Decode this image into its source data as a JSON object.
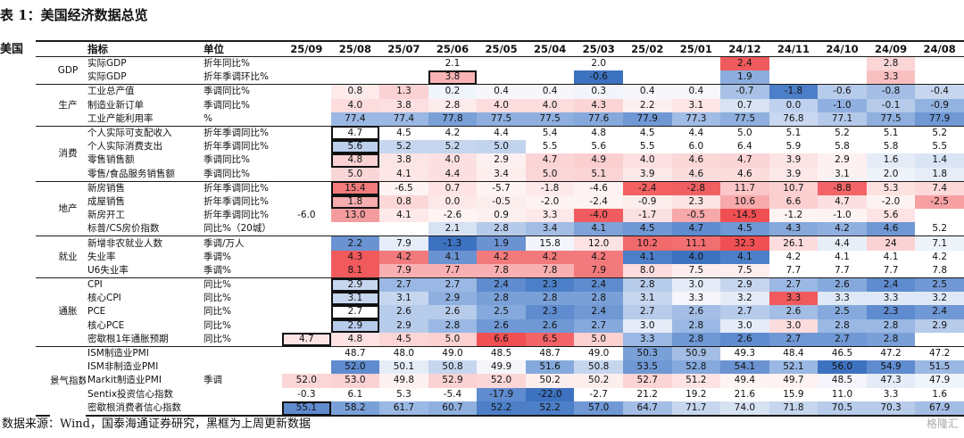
{
  "title": "表 1：美国经济数据总览",
  "country": "美国",
  "header": {
    "indicator": "指标",
    "unit": "单位",
    "months": [
      "25/09",
      "25/08",
      "25/07",
      "25/06",
      "25/05",
      "25/04",
      "25/03",
      "25/02",
      "25/01",
      "24/12",
      "24/11",
      "24/10",
      "24/09",
      "24/08"
    ]
  },
  "groups": [
    {
      "name": "GDP",
      "rows": [
        {
          "ind": "实际GDP",
          "unit": "折年同比%",
          "vals": [
            "",
            "",
            "",
            "2.1",
            "",
            "",
            "2.0",
            "",
            "",
            "2.4",
            "",
            "",
            "2.8",
            ""
          ],
          "bg": [
            "",
            "",
            "",
            "",
            "",
            "",
            "",
            "",
            "",
            "#f05a5c",
            "",
            "",
            "#fbd6d7",
            ""
          ],
          "box": []
        },
        {
          "ind": "实际GDP",
          "unit": "折年季调环比%",
          "vals": [
            "",
            "",
            "",
            "3.8",
            "",
            "",
            "-0.6",
            "",
            "",
            "1.9",
            "",
            "",
            "3.3",
            ""
          ],
          "bg": [
            "",
            "",
            "",
            "#f8b4b6",
            "",
            "",
            "#3d72c0",
            "",
            "",
            "#8cadde",
            "",
            "",
            "#f8bfc1",
            ""
          ],
          "box": [
            3
          ]
        }
      ]
    },
    {
      "name": "生产",
      "rows": [
        {
          "ind": "工业总产值",
          "unit": "季调同比%",
          "vals": [
            "",
            "0.8",
            "1.3",
            "0.2",
            "0.4",
            "0.4",
            "0.3",
            "0.4",
            "0.4",
            "-0.7",
            "-1.8",
            "-0.6",
            "-0.8",
            "-0.4"
          ],
          "bg": [
            "",
            "#fdeaea",
            "#fbd2d3",
            "#f0f4fb",
            "#f7f7fb",
            "#f7f7fb",
            "#f2f5fb",
            "#f7f7fb",
            "#f7f7fb",
            "#a9c1e6",
            "#4c7fc8",
            "#b7cbea",
            "#a3bde4",
            "#c6d6ee"
          ],
          "box": []
        },
        {
          "ind": "制造业新订单",
          "unit": "季调同比%",
          "vals": [
            "",
            "4.0",
            "3.8",
            "2.8",
            "4.0",
            "4.0",
            "4.3",
            "2.2",
            "3.1",
            "0.7",
            "0.0",
            "-1.0",
            "-0.1",
            "-0.9"
          ],
          "bg": [
            "",
            "#fcdcdd",
            "#fcdfe0",
            "#fdeaeb",
            "#fcdcdd",
            "#fcdcdd",
            "#fbd5d6",
            "#fdf0f0",
            "#fde5e5",
            "#d7e2f3",
            "#bfd1ee",
            "#8fb0e0",
            "#b6cbea",
            "#92b2e0"
          ],
          "box": []
        },
        {
          "ind": "工业产能利用率",
          "unit": "%",
          "vals": [
            "",
            "77.4",
            "77.4",
            "77.8",
            "77.5",
            "77.5",
            "77.6",
            "77.9",
            "77.3",
            "77.5",
            "76.8",
            "77.1",
            "77.5",
            "77.9"
          ],
          "bg": [
            "",
            "#9ab8e3",
            "#9ab8e3",
            "#7aa0d8",
            "#8fb0df",
            "#8fb0df",
            "#85a9dc",
            "#6f98d4",
            "#a1bce5",
            "#8fb0df",
            "#c9d8f0",
            "#b4c9ea",
            "#8fb0df",
            "#6f98d4"
          ],
          "box": []
        }
      ]
    },
    {
      "name": "消费",
      "rows": [
        {
          "ind": "个人实际可支配收入",
          "unit": "折年季调同比%",
          "vals": [
            "",
            "4.7",
            "4.5",
            "4.2",
            "4.4",
            "5.4",
            "4.8",
            "4.5",
            "4.4",
            "5.0",
            "5.1",
            "5.2",
            "5.1",
            "5.2"
          ],
          "bg": [
            "",
            "",
            "",
            "",
            "",
            "",
            "",
            "",
            "",
            "",
            "",
            "",
            "",
            ""
          ],
          "box": [
            1
          ]
        },
        {
          "ind": "个人实际消费支出",
          "unit": "折年季调同比%",
          "vals": [
            "",
            "5.6",
            "5.2",
            "5.2",
            "5.0",
            "5.5",
            "5.6",
            "5.5",
            "6.0",
            "6.4",
            "5.9",
            "5.8",
            "5.8",
            "5.5"
          ],
          "bg": [
            "",
            "#bccfec",
            "#c6d6ee",
            "#c6d6ee",
            "#c2d3ed",
            "",
            "",
            "",
            "",
            "",
            "",
            "",
            "",
            ""
          ],
          "box": [
            1
          ]
        },
        {
          "ind": "零售销售额",
          "unit": "季调同比%",
          "vals": [
            "",
            "4.8",
            "3.8",
            "4.0",
            "2.9",
            "4.7",
            "4.9",
            "4.0",
            "4.6",
            "4.7",
            "3.9",
            "2.9",
            "1.6",
            "1.4"
          ],
          "bg": [
            "",
            "#fbd2d3",
            "#fce5e5",
            "#fce0e1",
            "#fdf0f0",
            "#fbd4d5",
            "#fbcfd0",
            "#fce0e1",
            "#fbd7d8",
            "#fbd4d5",
            "#fce3e4",
            "#fdf0f0",
            "#e5ecf7",
            "#d9e4f4"
          ],
          "box": [
            1
          ]
        },
        {
          "ind": "零售/食品服务销售额",
          "unit": "季调同比%",
          "vals": [
            "",
            "5.0",
            "4.1",
            "4.4",
            "3.4",
            "5.0",
            "5.1",
            "3.9",
            "4.6",
            "4.6",
            "3.9",
            "3.1",
            "2.0",
            "1.8"
          ],
          "bg": [
            "",
            "#fbd6d7",
            "#fce6e6",
            "#fcdfe0",
            "#fdeeee",
            "#fbd6d7",
            "#fbd4d5",
            "#fce8e8",
            "#fcdcdd",
            "#fcdcdd",
            "#fce8e8",
            "#fdf2f2",
            "#eef3fa",
            "#e6edf8"
          ],
          "box": []
        }
      ]
    },
    {
      "name": "地产",
      "rows": [
        {
          "ind": "新房销售",
          "unit": "折年季调同比%",
          "vals": [
            "",
            "15.4",
            "-6.5",
            "0.7",
            "-5.7",
            "-1.8",
            "-4.6",
            "-2.4",
            "-2.8",
            "11.7",
            "10.7",
            "-8.8",
            "5.3",
            "7.4"
          ],
          "bg": [
            "",
            "#f27b7d",
            "#fef4f4",
            "#fde3e4",
            "#fef4f4",
            "#fde9e9",
            "#fef2f2",
            "#f36163",
            "#f06063",
            "#fbc6c7",
            "#fccfd0",
            "#f26467",
            "#fde1e1",
            "#fdd9da"
          ],
          "box": [
            1
          ]
        },
        {
          "ind": "成屋销售",
          "unit": "折年季调同比%",
          "vals": [
            "",
            "1.8",
            "0.8",
            "0.0",
            "-0.5",
            "-2.0",
            "-2.4",
            "-0.9",
            "2.3",
            "10.6",
            "6.6",
            "4.7",
            "-2.0",
            "-2.5"
          ],
          "bg": [
            "",
            "#f6adaf",
            "#fbd7d8",
            "#fde8e9",
            "#fdeeee",
            "#fef3f3",
            "#fef3f3",
            "#fdeeee",
            "#fde3e4",
            "#f7a9ab",
            "#fbcfd0",
            "#fce0e1",
            "#fef3f3",
            "#f6a0a2"
          ],
          "box": [
            1
          ]
        },
        {
          "ind": "新房开工",
          "unit": "折年季调同比%",
          "vals": [
            "-6.0",
            "13.0",
            "4.1",
            "-2.6",
            "0.9",
            "3.3",
            "-4.0",
            "-1.7",
            "-0.5",
            "-14.5",
            "-1.2",
            "-1.0",
            "5.6",
            ""
          ],
          "bg": [
            "",
            "#f39c9e",
            "#fde9e9",
            "#fef4f4",
            "#fdf0f0",
            "#fde9e9",
            "#f05c5f",
            "#fbe0e1",
            "#f7a8aa",
            "#f05054",
            "#fef3f3",
            "#fef3f3",
            "#fde3e4",
            ""
          ],
          "box": [],
          "shift": true
        },
        {
          "ind": "标普/CS房价指数",
          "unit": "同比%（20城）",
          "vals": [
            "",
            "",
            "",
            "2.1",
            "2.8",
            "3.4",
            "4.1",
            "4.5",
            "4.7",
            "4.5",
            "4.3",
            "4.2",
            "4.6",
            "5.2"
          ],
          "bg": [
            "",
            "",
            "",
            "#d7e2f3",
            "#b6cbea",
            "#a3bde4",
            "#7fa3d9",
            "#6f98d4",
            "#5f8bcf",
            "#6f98d4",
            "#86a8db",
            "#8fb0df",
            "#6f98d4",
            ""
          ],
          "box": []
        }
      ]
    },
    {
      "name": "就业",
      "rows": [
        {
          "ind": "新增非农就业人数",
          "unit": "季调/万人",
          "vals": [
            "",
            "2.2",
            "7.9",
            "-1.3",
            "1.9",
            "15.8",
            "12.0",
            "10.2",
            "11.1",
            "32.3",
            "26.1",
            "4.4",
            "24",
            "7.1"
          ],
          "bg": [
            "",
            "#6b93d2",
            "#e6edf8",
            "#3d72c0",
            "#6b93d2",
            "#f2f5fb",
            "#fce2e3",
            "#f16a6c",
            "#f26f71",
            "#f05054",
            "#fcdcdd",
            "#e8eef8",
            "#fbd2d3",
            "#eef3fa"
          ],
          "box": []
        },
        {
          "ind": "失业率",
          "unit": "季调%",
          "vals": [
            "",
            "4.3",
            "4.2",
            "4.1",
            "4.2",
            "4.2",
            "4.2",
            "4.1",
            "4.0",
            "4.1",
            "4.2",
            "4.1",
            "4.1",
            "4.2"
          ],
          "bg": [
            "",
            "#f05a5c",
            "#f37a7c",
            "#6b93d2",
            "#f37a7c",
            "#f37a7c",
            "#f37a7c",
            "#4c7fc8",
            "#3d72c0",
            "#4c7fc8",
            "",
            "",
            "",
            ""
          ],
          "box": []
        },
        {
          "ind": "U6失业率",
          "unit": "季调%",
          "vals": [
            "",
            "8.1",
            "7.9",
            "7.7",
            "7.8",
            "7.8",
            "7.9",
            "8.0",
            "7.5",
            "7.5",
            "7.7",
            "7.7",
            "7.7",
            "7.8"
          ],
          "bg": [
            "",
            "#f05a5c",
            "#f8b0b2",
            "#f8b0b2",
            "#f8b0b2",
            "#f8b0b2",
            "#f37a7c",
            "#fcdcdd",
            "#fdeeee",
            "#fdeeee",
            "",
            "",
            "",
            ""
          ],
          "box": []
        }
      ]
    },
    {
      "name": "通胀",
      "rows": [
        {
          "ind": "CPI",
          "unit": "同比%",
          "vals": [
            "",
            "2.9",
            "2.7",
            "2.7",
            "2.4",
            "2.3",
            "2.4",
            "2.8",
            "3.0",
            "2.9",
            "2.7",
            "2.6",
            "2.4",
            "2.5"
          ],
          "bg": [
            "",
            "#c6d6ee",
            "#9ab8e3",
            "#9ab8e3",
            "#5f8bcf",
            "#4c7fc8",
            "#5f8bcf",
            "#b7cbea",
            "#e5ecf7",
            "#c6d6ee",
            "#9ab8e3",
            "#85a9dc",
            "#5f8bcf",
            "#6f98d4"
          ],
          "box": [
            1
          ]
        },
        {
          "ind": "核心CPI",
          "unit": "同比%",
          "vals": [
            "",
            "3.1",
            "3.1",
            "2.9",
            "2.8",
            "2.8",
            "2.8",
            "3.1",
            "3.3",
            "3.2",
            "3.3",
            "3.3",
            "3.3",
            "3.2"
          ],
          "bg": [
            "",
            "#c6d6ee",
            "#c6d6ee",
            "#8fb0df",
            "#7aa0d8",
            "#7aa0d8",
            "#7aa0d8",
            "#c6d6ee",
            "#f5f5fb",
            "#e5ecf7",
            "#f05a5c",
            "#dfe8f6",
            "#dfe8f6",
            "#dfe8f6"
          ],
          "box": [
            1
          ]
        },
        {
          "ind": "PCE",
          "unit": "同比%",
          "vals": [
            "",
            "2.7",
            "2.6",
            "2.6",
            "2.5",
            "2.3",
            "2.4",
            "2.7",
            "2.6",
            "2.7",
            "2.6",
            "2.5",
            "2.3",
            "2.4"
          ],
          "bg": [
            "",
            "",
            "#b7cbea",
            "#b7cbea",
            "#85a9dc",
            "#5f8bcf",
            "#6f98d4",
            "#b7cbea",
            "#a3bde4",
            "#b7cbea",
            "#a3bde4",
            "#85a9dc",
            "#5f8bcf",
            "#6f98d4"
          ],
          "box": [
            1
          ]
        },
        {
          "ind": "核心PCE",
          "unit": "同比%",
          "vals": [
            "",
            "2.9",
            "2.9",
            "2.8",
            "2.6",
            "2.6",
            "2.7",
            "3.0",
            "2.8",
            "3.0",
            "3.0",
            "2.8",
            "2.8",
            "2.9"
          ],
          "bg": [
            "",
            "#b7cbea",
            "#b7cbea",
            "#9ab8e3",
            "#6f98d4",
            "#6f98d4",
            "#85a9dc",
            "#e5ecf7",
            "#9ab8e3",
            "#e5ecf7",
            "#fcdcdd",
            "#9ab8e3",
            "#9ab8e3",
            "#b7cbea"
          ],
          "box": [
            1
          ]
        },
        {
          "ind": "密歇根1年通胀预期",
          "unit": "同比%",
          "vals": [
            "4.7",
            "4.8",
            "4.5",
            "5.0",
            "6.6",
            "6.5",
            "5.0",
            "3.3",
            "2.8",
            "2.6",
            "2.7",
            "2.7",
            "2.8",
            ""
          ],
          "bg": [
            "#fde3e4",
            "#fce2e3",
            "#fcd6d7",
            "#fbd1d2",
            "#f05054",
            "#f26467",
            "#fbd1d2",
            "#9ab8e3",
            "#6f98d4",
            "#5f8bcf",
            "#6f98d4",
            "#6f98d4",
            "#7aa0d8",
            ""
          ],
          "box": [
            0
          ],
          "shift": true
        }
      ]
    },
    {
      "name": "景气指数",
      "rows": [
        {
          "ind": "ISM制造业PMI",
          "unit": "",
          "vals": [
            "",
            "48.7",
            "48.0",
            "49.0",
            "48.5",
            "48.7",
            "49.0",
            "50.3",
            "50.9",
            "49.3",
            "48.4",
            "46.5",
            "47.2",
            "47.2"
          ],
          "bg": [
            "",
            "",
            "",
            "",
            "",
            "",
            "",
            "#7aa0d8",
            "#a3bde4",
            "",
            "",
            "",
            "",
            ""
          ],
          "box": []
        },
        {
          "ind": "ISM非制造业PMI",
          "unit": "",
          "vals": [
            "",
            "52.0",
            "50.1",
            "50.8",
            "49.9",
            "51.6",
            "50.8",
            "53.5",
            "52.8",
            "54.1",
            "52.1",
            "56.0",
            "54.9",
            "51.5"
          ],
          "bg": [
            "",
            "#5f8bcf",
            "#e5ecf7",
            "#c6d6ee",
            "#f5f5fb",
            "#85a9dc",
            "#c6d6ee",
            "#6f98d4",
            "#85a9dc",
            "#6b93d2",
            "#9ab8e3",
            "#3d72c0",
            "#5f8bcf",
            "#9ab8e3"
          ],
          "box": []
        },
        {
          "ind": "Markit制造业PMI",
          "unit": "季调",
          "vals": [
            "52.0",
            "53.0",
            "49.8",
            "52.9",
            "52.0",
            "50.2",
            "50.2",
            "52.7",
            "51.2",
            "49.4",
            "49.7",
            "48.5",
            "47.3",
            "47.9"
          ],
          "bg": [
            "#fbd6d7",
            "#fbd2d3",
            "#fef1f1",
            "#fbd2d3",
            "#fbd6d7",
            "#fdeeee",
            "#fdeeee",
            "#fbd4d5",
            "#fde3e4",
            "#fef4f4",
            "#fef2f2",
            "#f5f5fb",
            "#e5ecf7",
            "#f0f4fb"
          ],
          "box": []
        },
        {
          "ind": "Sentix投资信心指数",
          "unit": "",
          "vals": [
            "-0.3",
            "6.1",
            "5.3",
            "-5.4",
            "-17.9",
            "-22.0",
            "-2.7",
            "21.2",
            "19.2",
            "21.6",
            "15.9",
            "11.0",
            "3.3",
            "1.6"
          ],
          "bg": [
            "",
            "",
            "",
            "",
            "#5f8bcf",
            "#3d72c0",
            "",
            "",
            "",
            "",
            "",
            "",
            "",
            ""
          ],
          "box": []
        },
        {
          "ind": "密歇根消费者信心指数",
          "unit": "",
          "vals": [
            "55.1",
            "58.2",
            "61.7",
            "60.7",
            "52.2",
            "52.2",
            "57.0",
            "64.7",
            "71.7",
            "74.0",
            "71.8",
            "70.5",
            "70.3",
            "67.9"
          ],
          "bg": [
            "#5f8bcf",
            "#7aa0d8",
            "#9ab8e3",
            "#8fb0df",
            "#4c7fc8",
            "#4c7fc8",
            "#6f98d4",
            "#a3bde4",
            "#c6d6ee",
            "#d7e2f3",
            "#c6d6ee",
            "#b7cbea",
            "#b7cbea",
            "#a3bde4"
          ],
          "box": [
            0
          ]
        }
      ]
    }
  ],
  "footer": "数据来源：Wind，国泰海通证券研究，黑框为上周更新数据",
  "watermark": "格隆汇"
}
